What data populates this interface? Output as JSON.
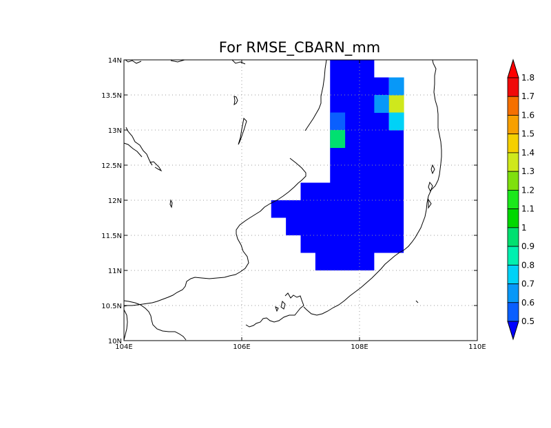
{
  "title": "For RMSE_CBARN_mm",
  "axes": {
    "x_ticks": [
      {
        "value": 104,
        "label": "104E"
      },
      {
        "value": 106,
        "label": "106E"
      },
      {
        "value": 108,
        "label": "108E"
      },
      {
        "value": 110,
        "label": "110E"
      }
    ],
    "y_ticks": [
      {
        "value": 10,
        "label": "10N"
      },
      {
        "value": 10.5,
        "label": "10.5N"
      },
      {
        "value": 11,
        "label": "11N"
      },
      {
        "value": 11.5,
        "label": "11.5N"
      },
      {
        "value": 12,
        "label": "12N"
      },
      {
        "value": 12.5,
        "label": "12.5N"
      },
      {
        "value": 13,
        "label": "13N"
      },
      {
        "value": 13.5,
        "label": "13.5N"
      },
      {
        "value": 14,
        "label": "14N"
      }
    ],
    "lon_range": [
      104,
      110
    ],
    "lat_range": [
      10,
      14
    ],
    "grid": "dotted"
  },
  "colorbar": {
    "labels": [
      "0.5",
      "0.6",
      "0.7",
      "0.8",
      "0.9",
      "1",
      "1.1",
      "1.2",
      "1.3",
      "1.4",
      "1.5",
      "1.6",
      "1.7",
      "1.8"
    ],
    "colors": [
      "#0000ff",
      "#0a5ffe",
      "#0898f8",
      "#00d2f7",
      "#00f0b0",
      "#00e070",
      "#00d800",
      "#1ce81c",
      "#7fe00e",
      "#cfe81c",
      "#f5d000",
      "#f8a000",
      "#f57000",
      "#f00a0a",
      "#ff0000"
    ],
    "extend": "both"
  },
  "chart_data": {
    "type": "heatmap",
    "title": "For RMSE_CBARN_mm",
    "xlim": [
      104,
      110
    ],
    "ylim": [
      10,
      14
    ],
    "cell_size_deg": 0.25,
    "levels": [
      0.5,
      0.6,
      0.7,
      0.8,
      0.9,
      1.0,
      1.1,
      1.2,
      1.3,
      1.4,
      1.5,
      1.6,
      1.7,
      1.8
    ],
    "background_value": "<0.5",
    "cells": [
      {
        "lon": 107.625,
        "lat": 13.125,
        "value": 0.55
      },
      {
        "lon": 107.625,
        "lat": 12.875,
        "value": 0.9
      },
      {
        "lon": 108.375,
        "lat": 13.375,
        "value": 0.65
      },
      {
        "lon": 108.625,
        "lat": 13.375,
        "value": 1.35
      },
      {
        "lon": 108.625,
        "lat": 13.625,
        "value": 0.65
      },
      {
        "lon": 108.625,
        "lat": 13.125,
        "value": 0.75
      }
    ]
  }
}
